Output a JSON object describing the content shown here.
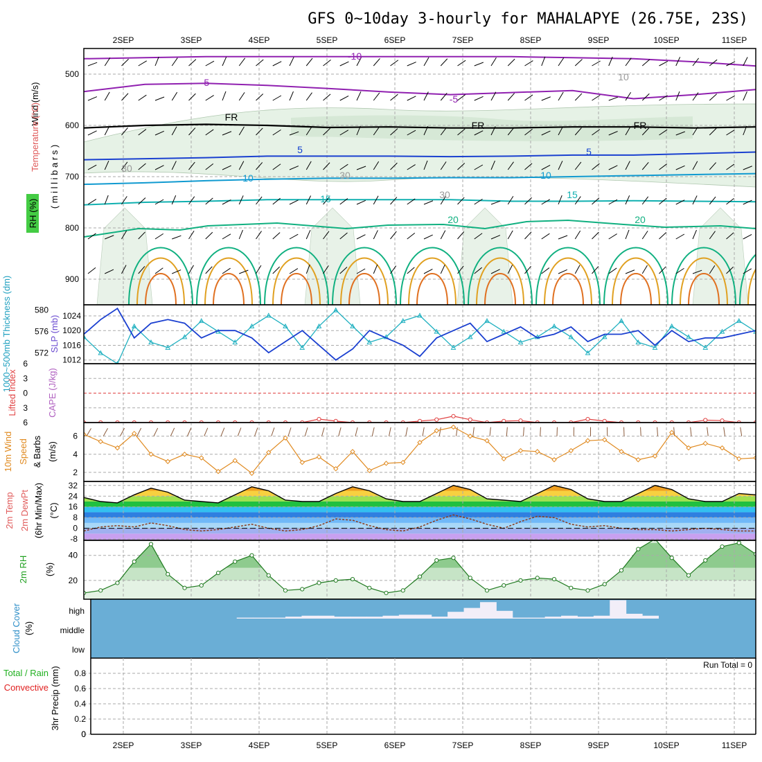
{
  "title": "GFS 0~10day 3-hourly for MAHALAPYE (26.75E, 23S)",
  "time_axis": {
    "labels": [
      "2SEP",
      "3SEP",
      "4SEP",
      "5SEP",
      "6SEP",
      "7SEP",
      "8SEP",
      "9SEP",
      "10SEP",
      "11SEP"
    ]
  },
  "chart_data": [
    {
      "type": "contour",
      "panel": "upper-air",
      "ylabel_parts": [
        "Wind",
        "(m/s)",
        "Temperature",
        "(°C)"
      ],
      "rh_label": "RH (%)",
      "pressure_label": "( m i l l i b a r s )",
      "y_ticks": [
        500,
        600,
        700,
        800,
        900
      ],
      "ylim": [
        450,
        950
      ],
      "contour_labels": [
        {
          "text": "-10",
          "color": "#9020b0"
        },
        {
          "text": "-5",
          "color": "#9020b0"
        },
        {
          "text": "-5",
          "color": "#9020b0"
        },
        {
          "text": "FR",
          "color": "#000000"
        },
        {
          "text": "FR",
          "color": "#000000"
        },
        {
          "text": "FR",
          "color": "#000000"
        },
        {
          "text": "5",
          "color": "#1040d0"
        },
        {
          "text": "5",
          "color": "#1040d0"
        },
        {
          "text": "10",
          "color": "#109ad0"
        },
        {
          "text": "10",
          "color": "#109ad0"
        },
        {
          "text": "15",
          "color": "#10b0b0"
        },
        {
          "text": "15",
          "color": "#10b0b0"
        },
        {
          "text": "20",
          "color": "#10b080"
        },
        {
          "text": "20",
          "color": "#10b080"
        },
        {
          "text": "30",
          "color": "#999999"
        },
        {
          "text": "30",
          "color": "#999999"
        },
        {
          "text": "30",
          "color": "#999999"
        },
        {
          "text": "10",
          "color": "#999999"
        }
      ],
      "isotherm_levels_mb": [
        {
          "name": "-10",
          "values": [
            470,
            468,
            466,
            466,
            466,
            466,
            466,
            466,
            468,
            470,
            476,
            484
          ]
        },
        {
          "name": "-5",
          "values": [
            534,
            520,
            518,
            522,
            528,
            535,
            540,
            536,
            532,
            548,
            540,
            530
          ]
        },
        {
          "name": "FR",
          "values": [
            605,
            600,
            598,
            600,
            604,
            603,
            605,
            605,
            603,
            603,
            605,
            603
          ]
        },
        {
          "name": "5",
          "values": [
            667,
            665,
            663,
            660,
            660,
            660,
            661,
            660,
            658,
            658,
            655,
            652
          ]
        },
        {
          "name": "10",
          "values": [
            715,
            712,
            708,
            705,
            703,
            703,
            702,
            702,
            700,
            698,
            696,
            694
          ]
        },
        {
          "name": "15",
          "values": [
            755,
            750,
            748,
            745,
            745,
            745,
            745,
            748,
            748,
            747,
            748,
            749
          ]
        }
      ]
    },
    {
      "type": "line",
      "panel": "thickness-slp",
      "ylabel_left": "1000~500mb Thickness (dm)",
      "ylabel_right": "SLP (mb)",
      "y_ticks_left": [
        572,
        576,
        580
      ],
      "y_ticks_right": [
        1012,
        1016,
        1020,
        1024
      ],
      "series": [
        {
          "name": "SLP",
          "color": "#1a3fd0",
          "values": [
            1019,
            1023,
            1026,
            1018,
            1022,
            1023,
            1022,
            1018,
            1020,
            1020,
            1018,
            1014,
            1017,
            1020,
            1016,
            1012,
            1015,
            1020,
            1018,
            1016,
            1013,
            1018,
            1020,
            1022,
            1017,
            1019,
            1021,
            1018,
            1019,
            1021,
            1017,
            1019,
            1019,
            1020,
            1016,
            1020,
            1017,
            1018,
            1018,
            1019,
            1020
          ]
        },
        {
          "name": "Thickness",
          "color": "#20b0c0",
          "values": [
            575,
            572,
            570,
            577,
            574,
            573,
            575,
            578,
            576,
            574,
            577,
            579,
            577,
            573,
            577,
            580,
            577,
            574,
            575,
            578,
            579,
            576,
            573,
            575,
            578,
            576,
            574,
            575,
            577,
            575,
            572,
            575,
            578,
            574,
            573,
            577,
            575,
            573,
            576,
            578,
            576
          ]
        }
      ]
    },
    {
      "type": "line",
      "panel": "li-cape",
      "ylabel_left": "Lifted Index",
      "ylabel_right": "CAPE (J/kg)",
      "y_ticks": [
        -6,
        -3,
        0,
        3,
        6
      ],
      "ylim": [
        -6,
        6
      ],
      "series": [
        {
          "name": "Lifted Index",
          "color": "#e04040",
          "values": [
            6,
            6,
            6,
            6,
            6,
            6,
            6,
            6,
            6,
            6,
            6,
            6,
            6,
            6,
            5.3,
            5.7,
            6,
            6,
            6,
            6,
            5.7,
            5.4,
            4.7,
            5.4,
            6,
            5.7,
            5.6,
            6,
            6,
            6,
            5.3,
            5.7,
            6,
            6,
            6,
            6,
            6,
            5.5,
            5.6,
            6,
            6
          ]
        }
      ]
    },
    {
      "type": "line",
      "panel": "wind10m",
      "ylabel": [
        "10m Wind",
        "Speed",
        "& Barbs",
        "(m/s)"
      ],
      "y_ticks": [
        2,
        4,
        6
      ],
      "ylim": [
        1,
        7.5
      ],
      "series": [
        {
          "name": "10m Wind Speed",
          "color": "#e08a20",
          "values": [
            6.2,
            5.4,
            4.7,
            6.3,
            4.0,
            3.2,
            4.0,
            3.6,
            2.1,
            3.3,
            1.9,
            4.2,
            5.8,
            3.1,
            3.7,
            2.4,
            4.3,
            2.2,
            3.0,
            3.1,
            5.3,
            6.6,
            7.0,
            6.0,
            5.5,
            3.5,
            4.4,
            4.3,
            3.4,
            4.4,
            5.5,
            5.6,
            4.3,
            3.4,
            3.8,
            6.4,
            4.7,
            5.2,
            4.7,
            3.5,
            3.6
          ]
        }
      ]
    },
    {
      "type": "area",
      "panel": "temperature",
      "ylabel": [
        "2m Temp",
        "2m DewPt",
        "(6hr Min/Max)",
        "(°C)"
      ],
      "y_ticks": [
        -8,
        0,
        8,
        16,
        24,
        32
      ],
      "series": [
        {
          "name": "2m Temp",
          "color": "#000000",
          "values": [
            23,
            20,
            19,
            25,
            30,
            27,
            21,
            20,
            19,
            25,
            31,
            28,
            21,
            20,
            20,
            26,
            31,
            28,
            22,
            20,
            20,
            26,
            32,
            29,
            22,
            21,
            20,
            26,
            32,
            29,
            22,
            20,
            20,
            26,
            32,
            29,
            22,
            20,
            20,
            26,
            25
          ]
        },
        {
          "name": "2m DewPt",
          "color": "#8b3a1a",
          "values": [
            -2,
            1,
            2,
            1,
            4,
            2,
            -1,
            -2,
            -1,
            1,
            3,
            0,
            -2,
            -1,
            2,
            7,
            6,
            2,
            -1,
            -2,
            1,
            6,
            10,
            7,
            3,
            0,
            5,
            9,
            8,
            3,
            1,
            2,
            0,
            -1,
            -1,
            -2,
            -1,
            0,
            -1,
            -2,
            -2
          ]
        }
      ]
    },
    {
      "type": "area",
      "panel": "rh2m",
      "ylabel": [
        "2m RH",
        "(%)"
      ],
      "y_ticks": [
        20,
        40
      ],
      "ylim": [
        5,
        52
      ],
      "series": [
        {
          "name": "2m RH",
          "color": "#207a20",
          "values": [
            10,
            12,
            18,
            35,
            49,
            25,
            14,
            16,
            26,
            35,
            40,
            24,
            12,
            13,
            18,
            20,
            21,
            14,
            10,
            12,
            23,
            36,
            38,
            22,
            12,
            16,
            20,
            22,
            21,
            14,
            12,
            17,
            28,
            45,
            53,
            38,
            24,
            36,
            47,
            50,
            41
          ]
        }
      ]
    },
    {
      "type": "bar",
      "panel": "cloud-cover",
      "ylabel": [
        "Cloud Cover",
        "(%)"
      ],
      "y_ticks": [
        "low",
        "middle",
        "high"
      ],
      "series": [
        {
          "name": "high",
          "color": "#f2eef8",
          "values": [
            0,
            0,
            0,
            0,
            0,
            0,
            0,
            0,
            0,
            5,
            5,
            5,
            10,
            15,
            15,
            10,
            10,
            10,
            15,
            20,
            20,
            10,
            35,
            55,
            85,
            40,
            5,
            5,
            10,
            15,
            10,
            15,
            95,
            25,
            15,
            0,
            0,
            0,
            0,
            0,
            0
          ]
        }
      ]
    },
    {
      "type": "bar",
      "panel": "precip",
      "ylabel": [
        "3hr Precip (mm)"
      ],
      "legend_parts": [
        "Total / Rain",
        "Convective"
      ],
      "y_ticks": [
        0,
        0.2,
        0.4,
        0.6,
        0.8
      ],
      "ylim": [
        0,
        1
      ],
      "run_total_text": "Run Total = 0",
      "series": [
        {
          "name": "Total / Rain",
          "color": "#00b000",
          "values": [
            0
          ]
        },
        {
          "name": "Convective",
          "color": "#e00000",
          "values": [
            0
          ]
        }
      ]
    }
  ]
}
